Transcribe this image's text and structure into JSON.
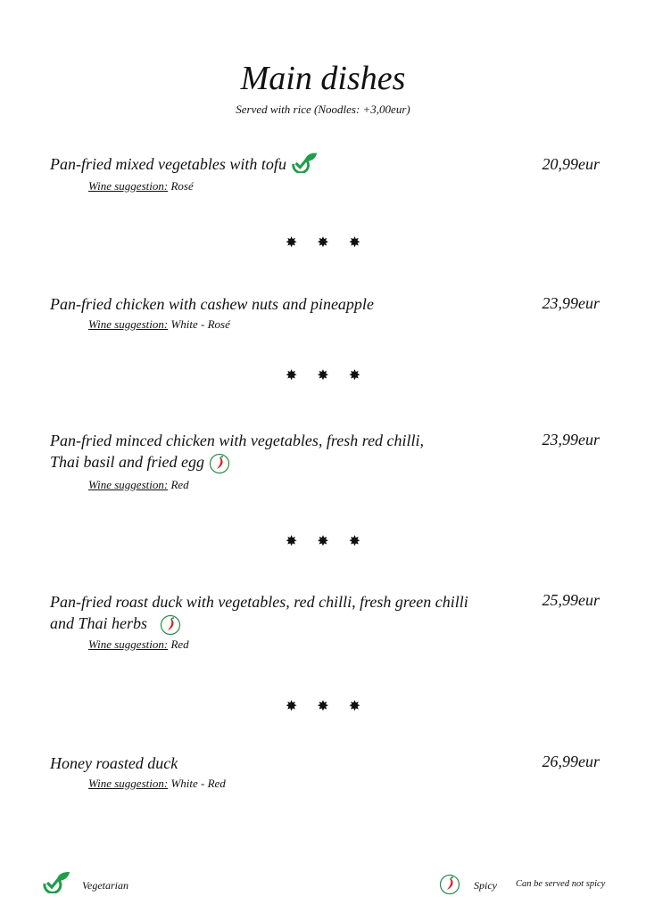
{
  "header": {
    "title": "Main dishes",
    "subtitle": "Served with rice (Noodles: +3,00eur)"
  },
  "separator": "✸ ✸ ✸",
  "colors": {
    "vegetarian": "#1e9e4a",
    "spicy": "#d8262b"
  },
  "dishes": [
    {
      "name": "Pan-fried mixed vegetables with tofu",
      "price": "20,99eur",
      "wine_label": "Wine suggestion:",
      "wine": "Rosé",
      "icon": "vegetarian-icon"
    },
    {
      "name": "Pan-fried chicken with cashew nuts and pineapple",
      "price": "23,99eur",
      "wine_label": "Wine suggestion:",
      "wine": "White - Rosé"
    },
    {
      "name_line1": "Pan-fried minced chicken with vegetables, fresh red chilli,",
      "name_line2": "Thai basil and fried egg",
      "price": "23,99eur",
      "wine_label": "Wine suggestion:",
      "wine": "Red",
      "icon": "chili-icon"
    },
    {
      "name_line1": "Pan-fried roast duck with vegetables, red chilli, fresh green chilli",
      "name_line2": "and Thai herbs",
      "price": "25,99eur",
      "wine_label": "Wine suggestion:",
      "wine": "Red",
      "icon": "chili-icon"
    },
    {
      "name": "Honey roasted duck",
      "price": "26,99eur",
      "wine_label": "Wine suggestion:",
      "wine": "White - Red"
    }
  ],
  "legend": {
    "vegetarian": "Vegetarian",
    "spicy": "Spicy",
    "spicy_note": "Can be served not spicy"
  }
}
